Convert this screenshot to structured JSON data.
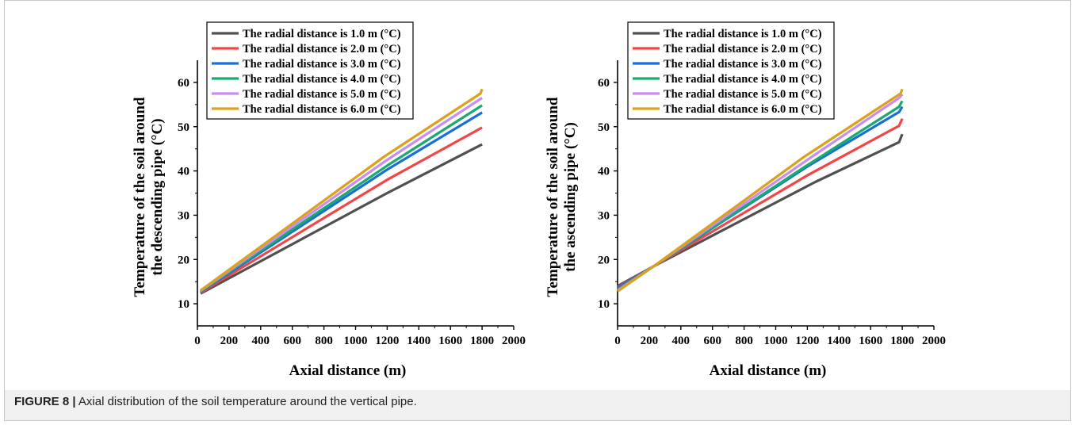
{
  "caption": {
    "label": "FIGURE 8 |",
    "text": " Axial distribution of the soil temperature around the vertical pipe."
  },
  "legend_labels": [
    "The radial distance is 1.0 m (°C)",
    "The radial distance is 2.0 m (°C)",
    "The radial distance is 3.0 m (°C)",
    "The radial distance is 4.0 m (°C)",
    "The radial distance is 5.0 m (°C)",
    "The radial distance is 6.0 m (°C)"
  ],
  "series_colors": [
    "#505050",
    "#f24646",
    "#1a6fd4",
    "#1aaa6e",
    "#c98cf0",
    "#d9a21a"
  ],
  "chart_data": [
    {
      "type": "line",
      "title": "",
      "xlabel": "Axial distance (m)",
      "ylabel": "Temperature of the soil around the descending pipe (°C)",
      "xlim": [
        0,
        2000
      ],
      "ylim": [
        5,
        65
      ],
      "xticks": [
        0,
        200,
        400,
        600,
        800,
        1000,
        1200,
        1400,
        1600,
        1800,
        2000
      ],
      "yticks": [
        10,
        20,
        30,
        40,
        50,
        60
      ],
      "legend": "top-left",
      "series": [
        {
          "name": "The radial distance is 1.0 m (°C)",
          "points": [
            [
              20,
              12.3
            ],
            [
              1200,
              35.0
            ],
            [
              1800,
              46.0
            ]
          ]
        },
        {
          "name": "The radial distance is 2.0 m (°C)",
          "points": [
            [
              20,
              12.5
            ],
            [
              1200,
              38.0
            ],
            [
              1800,
              49.8
            ]
          ]
        },
        {
          "name": "The radial distance is 3.0 m (°C)",
          "points": [
            [
              20,
              12.7
            ],
            [
              1200,
              40.3
            ],
            [
              1800,
              53.2
            ]
          ]
        },
        {
          "name": "The radial distance is 4.0 m (°C)",
          "points": [
            [
              20,
              12.8
            ],
            [
              1200,
              41.2
            ],
            [
              1800,
              54.8
            ]
          ]
        },
        {
          "name": "The radial distance is 5.0 m (°C)",
          "points": [
            [
              20,
              12.9
            ],
            [
              1200,
              42.5
            ],
            [
              1800,
              56.5
            ]
          ]
        },
        {
          "name": "The radial distance is 6.0 m (°C)",
          "points": [
            [
              20,
              13.0
            ],
            [
              1180,
              43.2
            ],
            [
              1790,
              57.5
            ],
            [
              1800,
              58.5
            ]
          ]
        }
      ]
    },
    {
      "type": "line",
      "title": "",
      "xlabel": "Axial distance (m)",
      "ylabel": "Temperature of the soil around the ascending pipe (°C)",
      "xlim": [
        0,
        2000
      ],
      "ylim": [
        5,
        65
      ],
      "xticks": [
        0,
        200,
        400,
        600,
        800,
        1000,
        1200,
        1400,
        1600,
        1800,
        2000
      ],
      "yticks": [
        10,
        20,
        30,
        40,
        50,
        60
      ],
      "legend": "top-left",
      "series": [
        {
          "name": "The radial distance is 1.0 m (°C)",
          "points": [
            [
              0,
              14.0
            ],
            [
              230,
              18.5
            ],
            [
              1250,
              37.5
            ],
            [
              1780,
              46.5
            ],
            [
              1800,
              48.3
            ]
          ]
        },
        {
          "name": "The radial distance is 2.0 m (°C)",
          "points": [
            [
              0,
              13.7
            ],
            [
              230,
              18.5
            ],
            [
              1200,
              39.0
            ],
            [
              1780,
              50.2
            ],
            [
              1800,
              51.8
            ]
          ]
        },
        {
          "name": "The radial distance is 3.0 m (°C)",
          "points": [
            [
              0,
              13.5
            ],
            [
              230,
              18.5
            ],
            [
              1200,
              41.0
            ],
            [
              1780,
              53.3
            ],
            [
              1800,
              54.5
            ]
          ]
        },
        {
          "name": "The radial distance is 4.0 m (°C)",
          "points": [
            [
              0,
              13.2
            ],
            [
              230,
              18.5
            ],
            [
              1200,
              41.3
            ],
            [
              1780,
              54.5
            ],
            [
              1800,
              55.8
            ]
          ]
        },
        {
          "name": "The radial distance is 5.0 m (°C)",
          "points": [
            [
              0,
              13.0
            ],
            [
              230,
              18.5
            ],
            [
              1200,
              42.5
            ],
            [
              1780,
              56.5
            ],
            [
              1800,
              57.3
            ]
          ]
        },
        {
          "name": "The radial distance is 6.0 m (°C)",
          "points": [
            [
              0,
              12.8
            ],
            [
              230,
              18.5
            ],
            [
              1180,
              43.2
            ],
            [
              1790,
              57.5
            ],
            [
              1800,
              58.5
            ]
          ]
        }
      ]
    }
  ]
}
